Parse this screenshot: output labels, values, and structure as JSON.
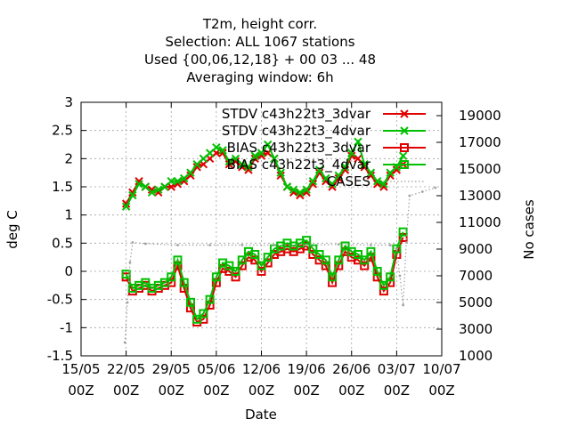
{
  "chart_data": {
    "type": "line",
    "title_lines": [
      "T2m, height corr.",
      "Selection: ALL    1067 stations",
      "Used {00,06,12,18} + 00 03 ... 48",
      "Averaging window:  6h"
    ],
    "xlabel": "Date",
    "ylabel": "deg C",
    "y2label": "No cases",
    "grid": true,
    "legend_position": "top-right",
    "x_ticks": [
      {
        "l1": "15/05",
        "l2": "00Z"
      },
      {
        "l1": "22/05",
        "l2": "00Z"
      },
      {
        "l1": "29/05",
        "l2": "00Z"
      },
      {
        "l1": "05/06",
        "l2": "00Z"
      },
      {
        "l1": "12/06",
        "l2": "00Z"
      },
      {
        "l1": "19/06",
        "l2": "00Z"
      },
      {
        "l1": "26/06",
        "l2": "00Z"
      },
      {
        "l1": "03/07",
        "l2": "00Z"
      },
      {
        "l1": "10/07",
        "l2": "00Z"
      }
    ],
    "xlim_days": [
      0,
      56
    ],
    "ylim": [
      -1.5,
      3
    ],
    "y_ticks": [
      -1.5,
      -1,
      -0.5,
      0,
      0.5,
      1,
      1.5,
      2,
      2.5,
      3
    ],
    "y2lim": [
      1000,
      20000
    ],
    "y2_ticks": [
      1000,
      3000,
      5000,
      7000,
      9000,
      11000,
      13000,
      15000,
      17000,
      19000
    ],
    "series": [
      {
        "name": "STDV c43h22t3_3dvar",
        "color": "#e00000",
        "marker": "x",
        "x": [
          7.0,
          8.0,
          9.0,
          10.0,
          11.0,
          12.0,
          13.0,
          14.0,
          15.0,
          16.0,
          17.0,
          18.0,
          19.0,
          20.0,
          21.0,
          22.0,
          23.0,
          24.0,
          25.0,
          26.0,
          27.0,
          28.0,
          29.0,
          30.0,
          31.0,
          32.0,
          33.0,
          34.0,
          35.0,
          36.0,
          37.0,
          38.0,
          39.0,
          40.0,
          41.0,
          42.0,
          43.0,
          44.0,
          45.0,
          46.0,
          47.0,
          48.0,
          49.0,
          50.0
        ],
        "y": [
          1.2,
          1.4,
          1.6,
          1.5,
          1.45,
          1.4,
          1.5,
          1.5,
          1.55,
          1.6,
          1.7,
          1.85,
          1.9,
          2.0,
          2.1,
          2.1,
          1.9,
          1.95,
          1.85,
          1.8,
          2.0,
          2.05,
          2.1,
          2.0,
          1.7,
          1.5,
          1.4,
          1.35,
          1.4,
          1.55,
          1.75,
          1.6,
          1.5,
          1.65,
          1.8,
          2.05,
          2.0,
          1.85,
          1.7,
          1.55,
          1.5,
          1.7,
          1.8,
          1.9
        ]
      },
      {
        "name": "STDV c43h22t3_4dvar",
        "color": "#00c000",
        "marker": "x",
        "x": [
          7.0,
          8.0,
          9.0,
          10.0,
          11.0,
          12.0,
          13.0,
          14.0,
          15.0,
          16.0,
          17.0,
          18.0,
          19.0,
          20.0,
          21.0,
          22.0,
          23.0,
          24.0,
          25.0,
          26.0,
          27.0,
          28.0,
          29.0,
          30.0,
          31.0,
          32.0,
          33.0,
          34.0,
          35.0,
          36.0,
          37.0,
          38.0,
          39.0,
          40.0,
          41.0,
          42.0,
          43.0,
          44.0,
          45.0,
          46.0,
          47.0,
          48.0,
          49.0,
          50.0
        ],
        "y": [
          1.15,
          1.35,
          1.55,
          1.5,
          1.4,
          1.45,
          1.5,
          1.6,
          1.6,
          1.65,
          1.75,
          1.9,
          2.0,
          2.1,
          2.2,
          2.15,
          1.95,
          2.0,
          1.9,
          1.85,
          2.05,
          2.1,
          2.25,
          2.0,
          1.75,
          1.5,
          1.45,
          1.4,
          1.45,
          1.6,
          1.8,
          1.65,
          1.55,
          1.7,
          1.85,
          2.1,
          2.3,
          1.9,
          1.75,
          1.6,
          1.55,
          1.75,
          1.85,
          2.05
        ]
      },
      {
        "name": "BIAS c43h22t3_3dvar",
        "color": "#e00000",
        "marker": "square",
        "x": [
          7.0,
          8.0,
          9.0,
          10.0,
          11.0,
          12.0,
          13.0,
          14.0,
          15.0,
          16.0,
          17.0,
          18.0,
          19.0,
          20.0,
          21.0,
          22.0,
          23.0,
          24.0,
          25.0,
          26.0,
          27.0,
          28.0,
          29.0,
          30.0,
          31.0,
          32.0,
          33.0,
          34.0,
          35.0,
          36.0,
          37.0,
          38.0,
          39.0,
          40.0,
          41.0,
          42.0,
          43.0,
          44.0,
          45.0,
          46.0,
          47.0,
          48.0,
          49.0,
          50.0
        ],
        "y": [
          -0.1,
          -0.35,
          -0.3,
          -0.25,
          -0.35,
          -0.3,
          -0.25,
          -0.2,
          0.1,
          -0.3,
          -0.65,
          -0.9,
          -0.85,
          -0.6,
          -0.2,
          0.05,
          0.0,
          -0.1,
          0.1,
          0.25,
          0.2,
          0.0,
          0.15,
          0.3,
          0.35,
          0.4,
          0.35,
          0.4,
          0.45,
          0.3,
          0.2,
          0.1,
          -0.2,
          0.1,
          0.35,
          0.25,
          0.2,
          0.1,
          0.25,
          -0.1,
          -0.35,
          -0.2,
          0.3,
          0.6
        ]
      },
      {
        "name": "BIAS c43h22t3_4dvar",
        "color": "#00c000",
        "marker": "square",
        "x": [
          7.0,
          8.0,
          9.0,
          10.0,
          11.0,
          12.0,
          13.0,
          14.0,
          15.0,
          16.0,
          17.0,
          18.0,
          19.0,
          20.0,
          21.0,
          22.0,
          23.0,
          24.0,
          25.0,
          26.0,
          27.0,
          28.0,
          29.0,
          30.0,
          31.0,
          32.0,
          33.0,
          34.0,
          35.0,
          36.0,
          37.0,
          38.0,
          39.0,
          40.0,
          41.0,
          42.0,
          43.0,
          44.0,
          45.0,
          46.0,
          47.0,
          48.0,
          49.0,
          50.0
        ],
        "y": [
          -0.05,
          -0.3,
          -0.25,
          -0.2,
          -0.3,
          -0.25,
          -0.2,
          -0.1,
          0.2,
          -0.2,
          -0.55,
          -0.85,
          -0.75,
          -0.5,
          -0.1,
          0.15,
          0.1,
          0.0,
          0.2,
          0.35,
          0.3,
          0.1,
          0.25,
          0.4,
          0.45,
          0.5,
          0.45,
          0.5,
          0.55,
          0.4,
          0.3,
          0.2,
          -0.1,
          0.2,
          0.45,
          0.35,
          0.3,
          0.2,
          0.35,
          0.0,
          -0.25,
          -0.1,
          0.4,
          0.7
        ]
      },
      {
        "name": "CASES",
        "color": "#a0a0a0",
        "marker": "dots",
        "axis": "y2",
        "x": [
          6.8,
          7.2,
          7.6,
          8.0,
          10.0,
          15.0,
          20.0,
          25.0,
          30.0,
          35.0,
          40.0,
          45.0,
          48.0,
          49.0,
          49.5,
          50.0,
          50.5,
          51.0,
          53.0,
          55.0
        ],
        "y": [
          2000,
          5000,
          8000,
          9500,
          9400,
          9300,
          9300,
          9300,
          9300,
          9300,
          9350,
          9300,
          9300,
          9000,
          7000,
          4800,
          9500,
          13000,
          13300,
          13600
        ]
      }
    ]
  }
}
